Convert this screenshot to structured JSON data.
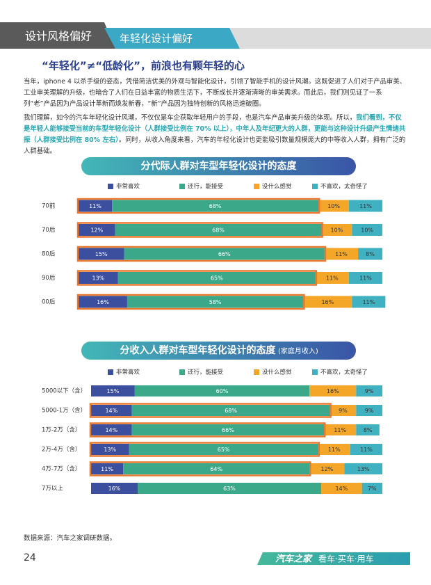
{
  "header": {
    "section": "设计风格偏好",
    "topic": "年轻化设计偏好"
  },
  "heading": "“年轻化”≠“低龄化”，前浪也有颗年轻的心",
  "paragraph_1": "当年，iphone 4 以杀手级的姿态，凭借简洁优美的外观与智能化设计，引领了智能手机的设计风潮。这既促进了人们对于产品审美、工业审美理解的升级，也暗合了人们在日益丰富的物质生活下，不断成长并逐渐清晰的审美需求。而此后，我们则见证了一系列“老”产品因为产品设计革新而焕发新春，“新”产品因为独特创新的风格迅速破圈。",
  "paragraph_2": {
    "before": "我们理解，如今的汽车年轻化设计风潮，不仅仅是车企获取年轻用户的手段，也是汽车产品审美升级的体现。所以，",
    "highlight": "我们看到，不仅是年轻人能够接受当前的车型年轻化设计（人群接受比例在 70% 以上），中年人及年纪更大的人群，更能与这种设计升级产生情绪共振（人群接受比例在 80% 左右）",
    "after": "。同时，从收入角度来看，汽车的年轻化设计也更能吸引数量规模庞大的中等收入人群，拥有广泛的人群基础。"
  },
  "chart_data": [
    {
      "type": "stacked-bar",
      "title": "分代际人群对车型年轻化设计的态度",
      "categories": [
        "70前",
        "70后",
        "80后",
        "90后",
        "00后"
      ],
      "highlight": [
        true,
        true,
        true,
        true,
        true
      ],
      "highlight_color": "#e8792e",
      "series": [
        {
          "name": "非常喜欢",
          "color": "#3b4f9e",
          "values": [
            11,
            12,
            15,
            13,
            16
          ],
          "value_labels": [
            "11%",
            "12%",
            "15%",
            "13%",
            "16%"
          ]
        },
        {
          "name": "还行，能接受",
          "color": "#3ba88a",
          "values": [
            68,
            68,
            66,
            65,
            58
          ],
          "value_labels": [
            "68%",
            "68%",
            "66%",
            "65%",
            "58%"
          ]
        },
        {
          "name": "没什么感觉",
          "color": "#f4a629",
          "values": [
            10,
            10,
            11,
            11,
            16
          ],
          "value_labels": [
            "10%",
            "10%",
            "11%",
            "11%",
            "16%"
          ]
        },
        {
          "name": "不喜欢，太奇怪了",
          "color": "#3fb1c1",
          "values": [
            11,
            10,
            8,
            11,
            11
          ],
          "value_labels": [
            "11%",
            "10%",
            "8%",
            "11%",
            "11%"
          ]
        }
      ]
    },
    {
      "type": "stacked-bar",
      "title": "分收入人群对车型年轻化设计的态度",
      "subtitle": "(家庭月收入)",
      "categories": [
        "5000以下（含）",
        "5000-1万（含）",
        "1万-2万（含）",
        "2万-4万（含）",
        "4万-7万（含）",
        "7万以上"
      ],
      "highlight": [
        false,
        true,
        true,
        true,
        true,
        false
      ],
      "highlight_color": "#e8792e",
      "series": [
        {
          "name": "非常喜欢",
          "color": "#3b4f9e",
          "values": [
            15,
            14,
            14,
            13,
            11,
            16
          ],
          "value_labels": [
            "15%",
            "14%",
            "14%",
            "13%",
            "11%",
            "16%"
          ]
        },
        {
          "name": "还行，能接受",
          "color": "#3ba88a",
          "values": [
            60,
            68,
            66,
            65,
            64,
            63
          ],
          "value_labels": [
            "60%",
            "68%",
            "66%",
            "65%",
            "64%",
            "63%"
          ]
        },
        {
          "name": "没什么感觉",
          "color": "#f4a629",
          "values": [
            16,
            9,
            11,
            11,
            12,
            14
          ],
          "value_labels": [
            "16%",
            "9%",
            "11%",
            "11%",
            "12%",
            "14%"
          ]
        },
        {
          "name": "不喜欢，太奇怪了",
          "color": "#3fb1c1",
          "values": [
            9,
            9,
            8,
            11,
            13,
            7
          ],
          "value_labels": [
            "9%",
            "9%",
            "8%",
            "11%",
            "13%",
            "7%"
          ]
        }
      ]
    }
  ],
  "source": "数据来源：汽车之家调研数据。",
  "footer": {
    "page": "24",
    "brand": "汽车之家",
    "slogan": "看车·买车·用车"
  }
}
